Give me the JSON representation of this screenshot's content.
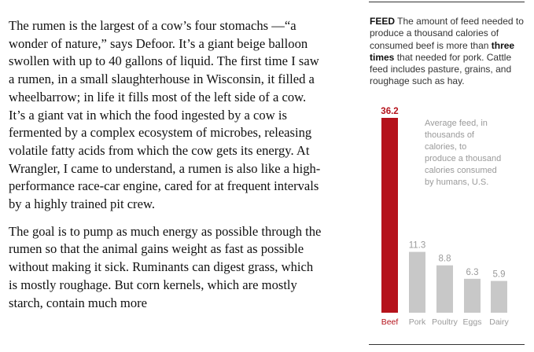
{
  "article": {
    "paragraphs": [
      "The rumen is the largest of a cow’s four stomachs —“a wonder of nature,” says Defoor. It’s a giant beige balloon swollen with up to 40 gallons of liquid. The first time I saw a rumen, in a small slaughterhouse in Wisconsin, it filled a wheelbarrow; in life it fills most of the left side of a cow. It’s a giant vat in which the food ingested by a cow is fermented by a complex ecosystem of microbes, releasing volatile fatty acids from which the cow gets its energy. At Wrangler, I came to understand, a rumen is also like a high-performance race-car engine, cared for at frequent intervals by a highly trained pit crew.",
      "The goal is to pump as much energy as possible through the rumen so that the animal gains weight as fast as possible without making it sick. Ruminants can digest grass, which is mostly roughage. But corn kernels, which are mostly starch, contain much more"
    ]
  },
  "sidebar": {
    "kicker": "FEED",
    "caption_part1": " The amount of feed needed to produce a thousand calories of consumed beef is more than ",
    "caption_bold": "three times",
    "caption_part2": " that needed for pork. Cattle feed includes pasture, grains, and roughage such as hay."
  },
  "chart_data": {
    "type": "bar",
    "categories": [
      "Beef",
      "Pork",
      "Poultry",
      "Eggs",
      "Dairy"
    ],
    "values": [
      36.2,
      11.3,
      8.8,
      6.3,
      5.9
    ],
    "annotation": "Average feed, in thousands of calories, to produce a thousand calories consumed by humans, U.S.",
    "ylim": [
      0,
      36.2
    ],
    "grid": false,
    "colors": {
      "highlight": "#b5121b",
      "bar": "#c8c8c8",
      "label": "#9a9a9a"
    }
  }
}
